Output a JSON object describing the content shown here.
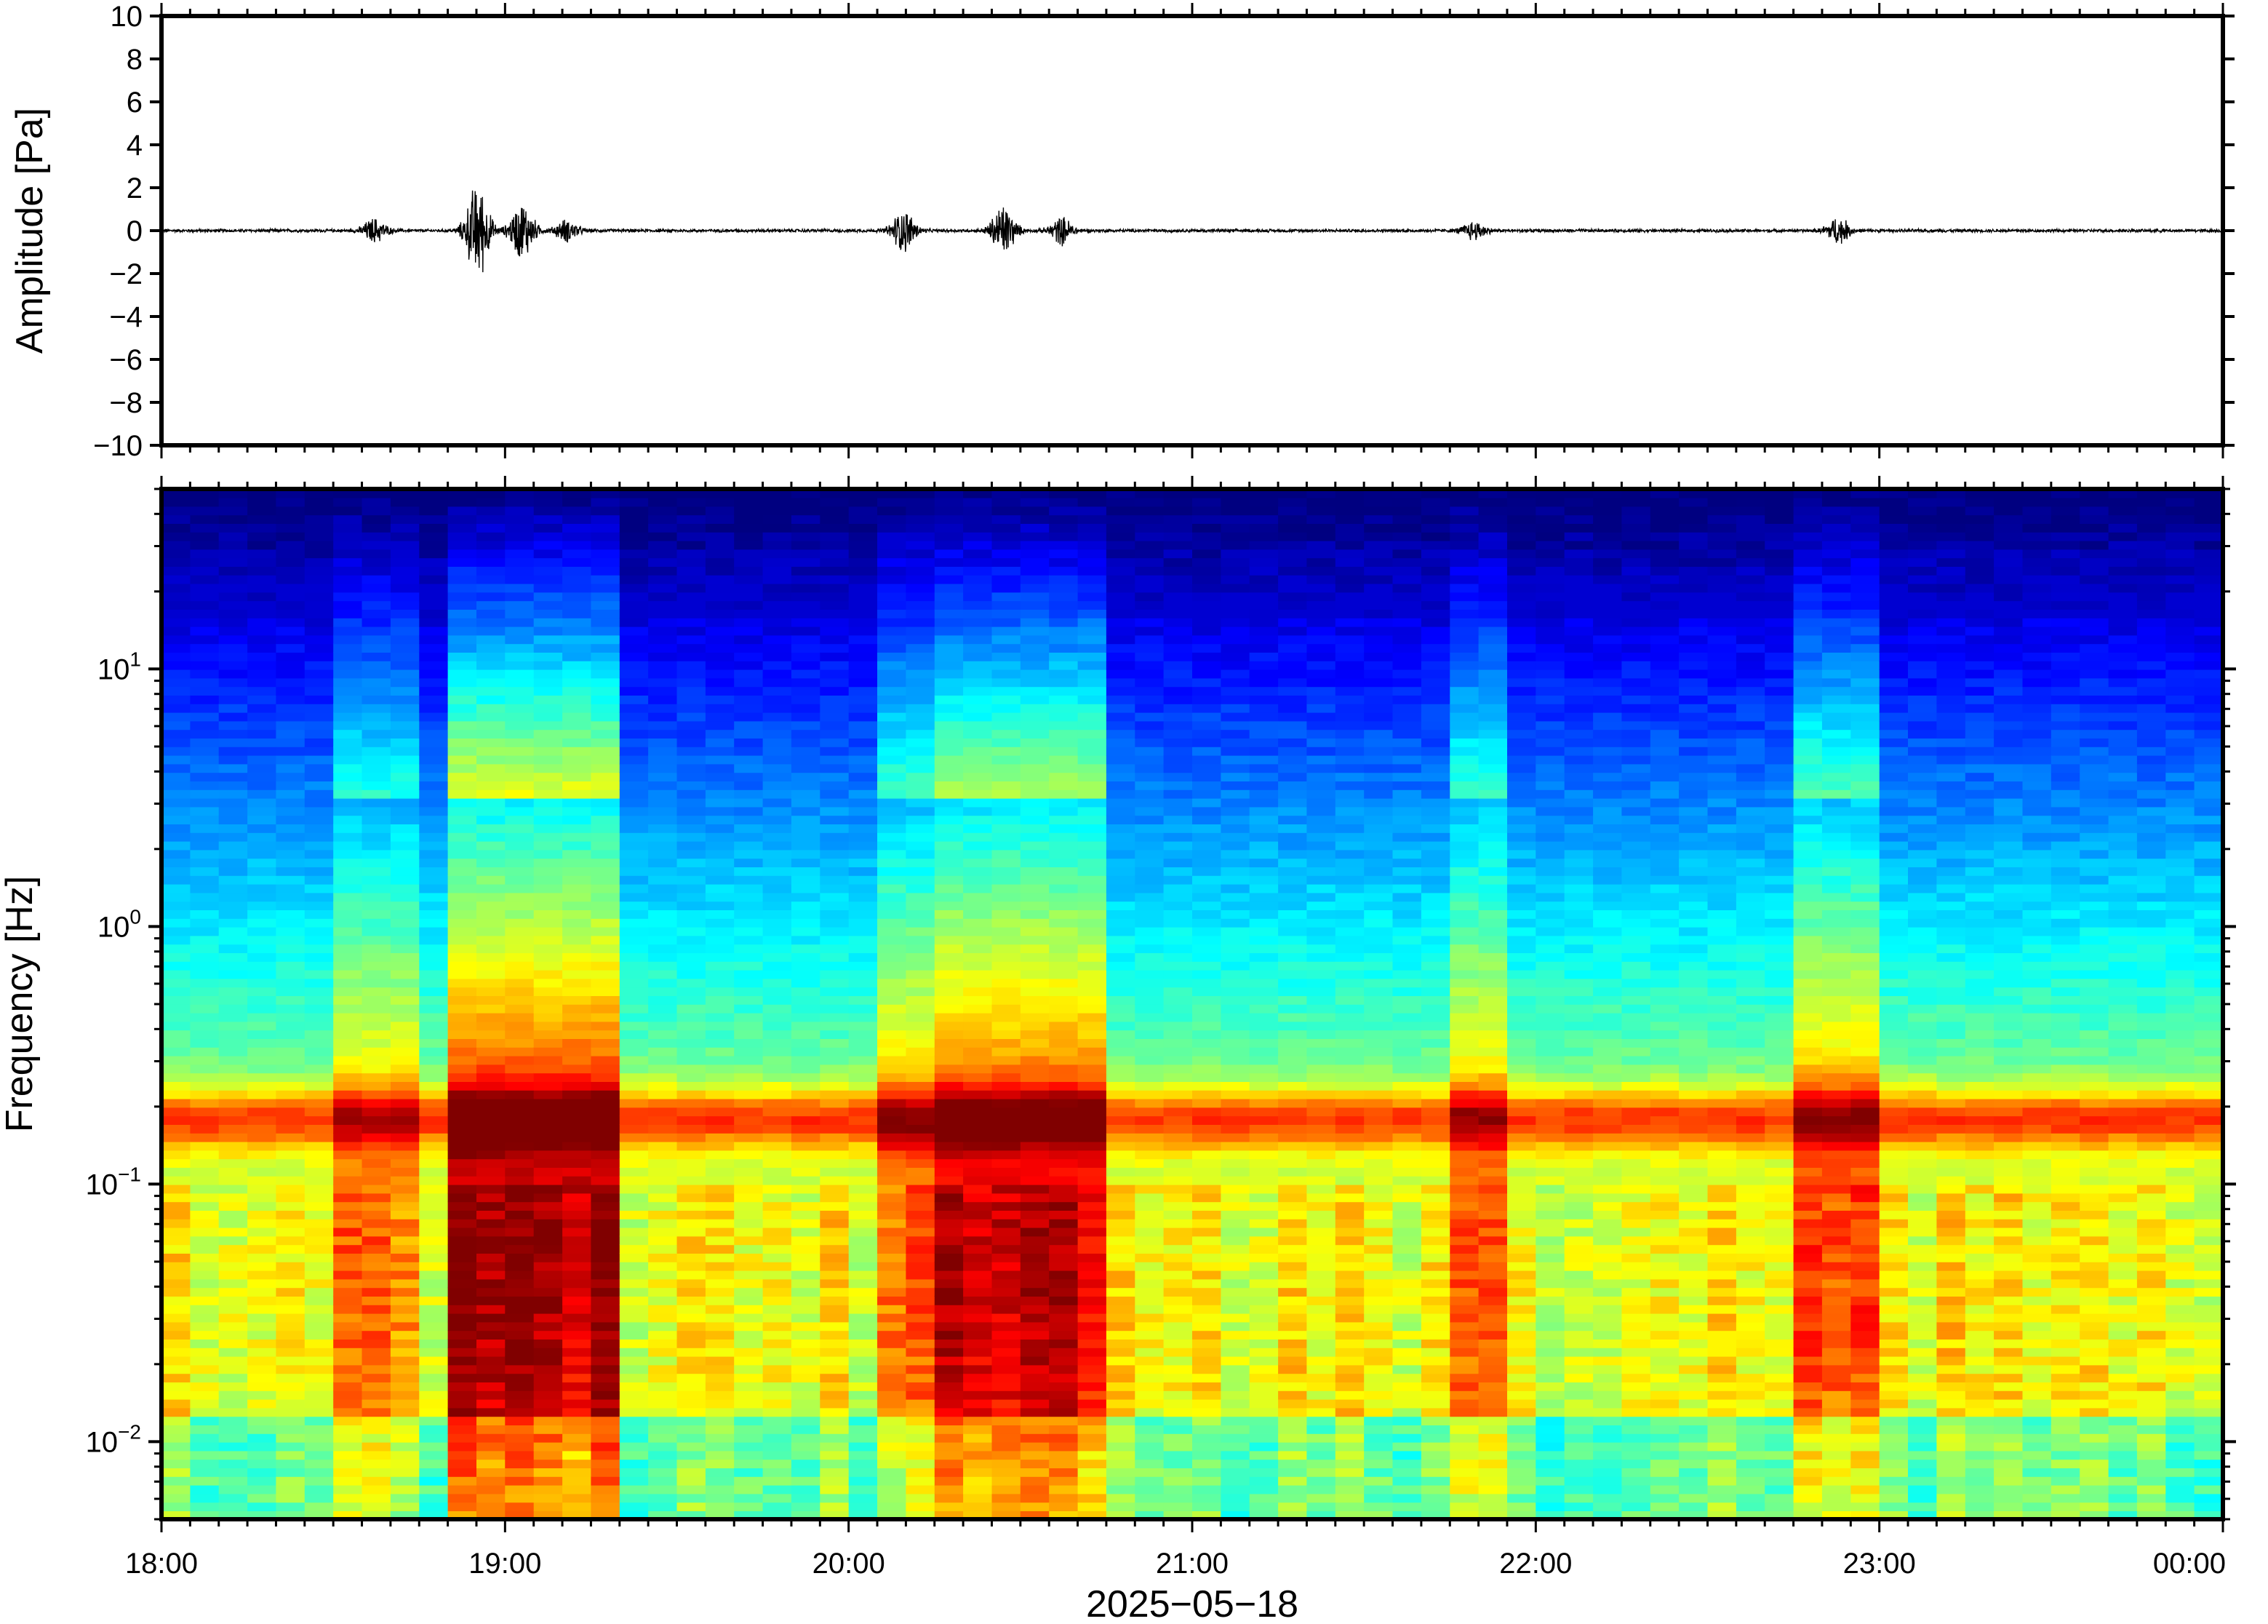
{
  "chart_data": [
    {
      "type": "line",
      "ylabel": "Amplitude [Pa]",
      "ylim": [
        -10,
        10
      ],
      "yticks": [
        10,
        8,
        6,
        4,
        2,
        0,
        -2,
        -4,
        -6,
        -8,
        -10
      ],
      "ytick_labels": [
        "10",
        "8",
        "6",
        "4",
        "2",
        "0",
        "−2",
        "−4",
        "−6",
        "−8",
        "−10"
      ],
      "xlim_hours": [
        18,
        24
      ],
      "grid": false,
      "bursts": [
        {
          "t": 18.62,
          "amp": 0.45
        },
        {
          "t": 18.92,
          "amp": 1.8
        },
        {
          "t": 19.05,
          "amp": 1.1
        },
        {
          "t": 19.18,
          "amp": 0.4
        },
        {
          "t": 20.16,
          "amp": 0.8
        },
        {
          "t": 20.45,
          "amp": 1.0
        },
        {
          "t": 20.62,
          "amp": 0.5
        },
        {
          "t": 21.82,
          "amp": 0.35
        },
        {
          "t": 22.88,
          "amp": 0.5
        }
      ]
    },
    {
      "type": "heatmap",
      "ylabel": "Frequency [Hz]",
      "yscale": "log",
      "ylim": [
        0.005,
        50
      ],
      "yticks": [
        {
          "value": 10,
          "base": "10",
          "exp": "1"
        },
        {
          "value": 1,
          "base": "10",
          "exp": "0"
        },
        {
          "value": 0.1,
          "base": "10",
          "exp": "−1"
        },
        {
          "value": 0.01,
          "base": "10",
          "exp": "−2"
        }
      ],
      "xlabel": "2025−05−18",
      "xticks": [
        "18:00",
        "19:00",
        "20:00",
        "21:00",
        "22:00",
        "23:00",
        "00:00"
      ],
      "colormap": "jet",
      "colors": {
        "low": "#00008f",
        "mid": "#7fff7f",
        "high": "#ff4000"
      },
      "microbarom_band_hz": 0.18,
      "activity_bands": [
        {
          "t0": 18.52,
          "t1": 18.72,
          "level": 0.45
        },
        {
          "t0": 18.86,
          "t1": 19.28,
          "level": 1.0
        },
        {
          "t0": 20.12,
          "t1": 20.22,
          "level": 0.55
        },
        {
          "t0": 20.28,
          "t1": 20.72,
          "level": 0.85
        },
        {
          "t0": 21.78,
          "t1": 21.93,
          "level": 0.5
        },
        {
          "t0": 22.78,
          "t1": 22.95,
          "level": 0.6
        }
      ]
    }
  ]
}
